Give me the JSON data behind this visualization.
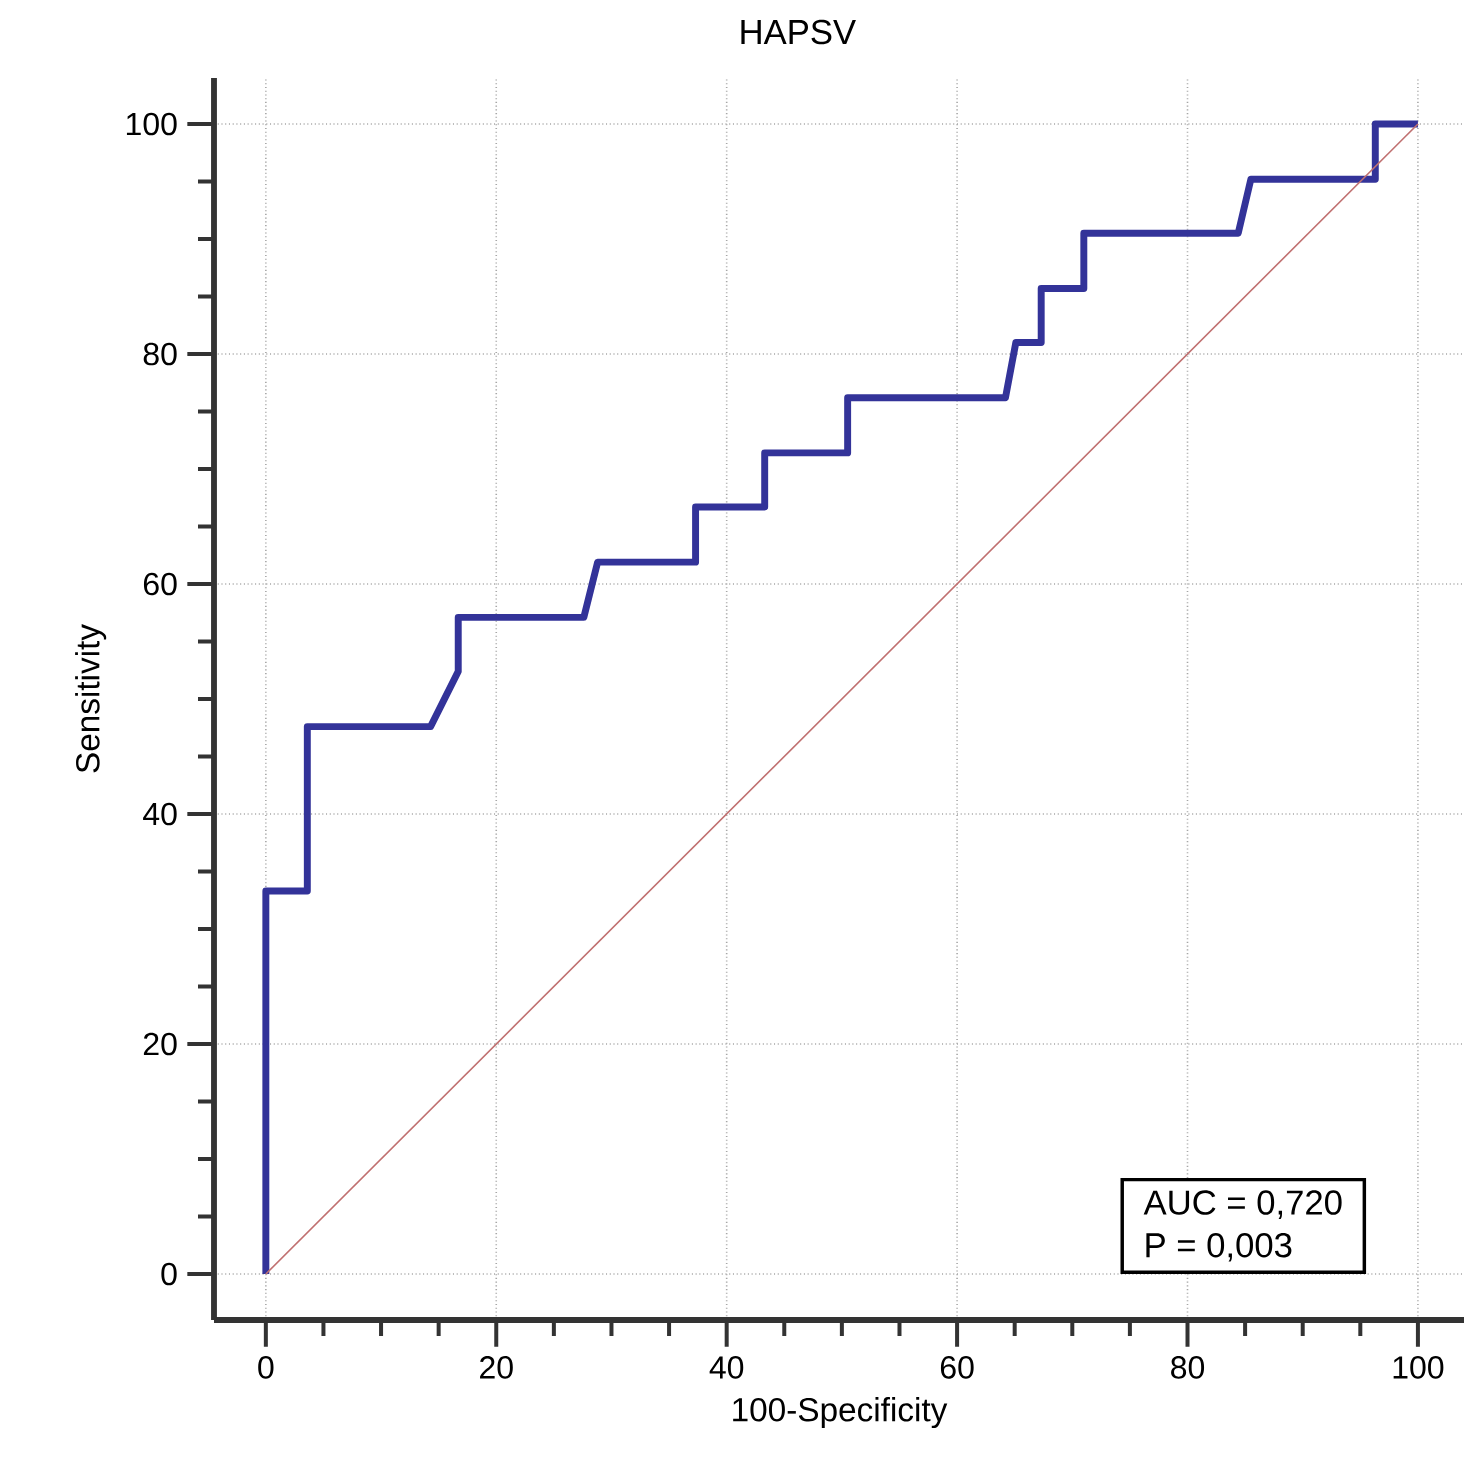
{
  "chart_data": {
    "type": "line",
    "title": "HAPSV",
    "xlabel": "100-Specificity",
    "ylabel": "Sensitivity",
    "series": [
      {
        "color": "#333399",
        "x": [
          0,
          0,
          3.6,
          3.6,
          14.3,
          16.7,
          16.7,
          27.6,
          28.8,
          37.3,
          37.3,
          43.3,
          43.3,
          50.5,
          50.5,
          64.2,
          65.1,
          67.3,
          67.3,
          71,
          71,
          84.4,
          85.5,
          96.3,
          96.3,
          100
        ],
        "values": [
          0,
          33.3,
          33.3,
          47.6,
          47.6,
          52.4,
          57.1,
          57.1,
          61.9,
          61.9,
          66.7,
          66.7,
          71.4,
          71.4,
          76.2,
          76.2,
          81,
          81,
          85.7,
          85.7,
          90.5,
          90.5,
          95.2,
          95.2,
          100,
          100
        ]
      },
      {
        "color": "#c07070",
        "x": [
          0,
          100
        ],
        "values": [
          0,
          100
        ]
      }
    ],
    "xlim": [
      -4.5,
      104
    ],
    "ylim": [
      -4,
      104
    ],
    "xticks": [
      0,
      20,
      40,
      60,
      80,
      100
    ],
    "yticks": [
      0,
      20,
      40,
      60,
      80,
      100
    ],
    "grid": true,
    "marker": "none",
    "line_style": "solid",
    "annotations": [
      "AUC = 0,720",
      "P = 0,003"
    ]
  }
}
